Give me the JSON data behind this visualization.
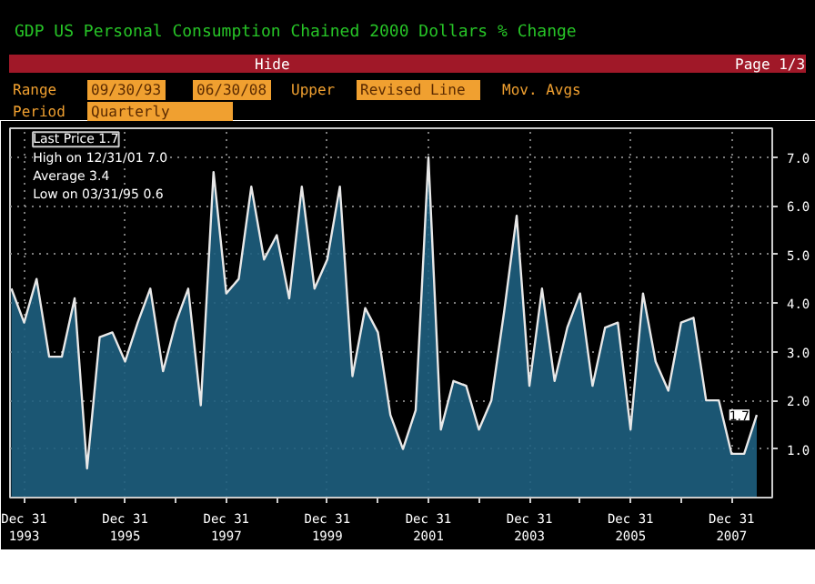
{
  "chart_data": {
    "type": "area",
    "title": "GDP US Personal Consumption Chained 2000 Dollars % Change",
    "annotations": [
      "Hide",
      "Page 1/3",
      "Range",
      "09/30/93",
      "06/30/08",
      "Upper",
      "Revised Line",
      "Mov. Avgs",
      "Period",
      "Quarterly",
      "Last Price 1.7",
      "High on 12/31/01 7.0",
      "Average 3.4",
      "Low on 03/31/95 0.6",
      {
        "text": "1.7",
        "x": "2008-06-30",
        "y": 1.7
      }
    ],
    "x": [
      "1993-09-30",
      "1993-12-31",
      "1994-03-31",
      "1994-06-30",
      "1994-09-30",
      "1994-12-31",
      "1995-03-31",
      "1995-06-30",
      "1995-09-30",
      "1995-12-31",
      "1996-03-31",
      "1996-06-30",
      "1996-09-30",
      "1996-12-31",
      "1997-03-31",
      "1997-06-30",
      "1997-09-30",
      "1997-12-31",
      "1998-03-31",
      "1998-06-30",
      "1998-09-30",
      "1998-12-31",
      "1999-03-31",
      "1999-06-30",
      "1999-09-30",
      "1999-12-31",
      "2000-03-31",
      "2000-06-30",
      "2000-09-30",
      "2000-12-31",
      "2001-03-31",
      "2001-06-30",
      "2001-09-30",
      "2001-12-31",
      "2002-03-31",
      "2002-06-30",
      "2002-09-30",
      "2002-12-31",
      "2003-03-31",
      "2003-06-30",
      "2003-09-30",
      "2003-12-31",
      "2004-03-31",
      "2004-06-30",
      "2004-09-30",
      "2004-12-31",
      "2005-03-31",
      "2005-06-30",
      "2005-09-30",
      "2005-12-31",
      "2006-03-31",
      "2006-06-30",
      "2006-09-30",
      "2006-12-31",
      "2007-03-31",
      "2007-06-30",
      "2007-09-30",
      "2007-12-31",
      "2008-03-31",
      "2008-06-30"
    ],
    "series": [
      {
        "color": "#1e5f80",
        "values": [
          4.3,
          3.6,
          4.5,
          2.9,
          2.9,
          4.1,
          0.6,
          3.3,
          3.4,
          2.8,
          3.6,
          4.3,
          2.6,
          3.6,
          4.3,
          1.9,
          6.7,
          4.2,
          4.5,
          6.4,
          4.9,
          5.4,
          4.1,
          6.4,
          4.3,
          4.9,
          6.4,
          2.5,
          3.9,
          3.4,
          1.7,
          1.0,
          1.8,
          7.0,
          1.4,
          2.4,
          2.3,
          1.4,
          2.0,
          3.8,
          5.8,
          2.3,
          4.3,
          2.4,
          3.5,
          4.2,
          2.3,
          3.5,
          3.6,
          1.4,
          4.2,
          2.8,
          2.2,
          3.6,
          3.7,
          2.0,
          2.0,
          0.9,
          0.9,
          1.7
        ]
      }
    ],
    "xlim": [
      "1993-09-20",
      "2008-10-20"
    ],
    "xticks": [
      {
        "value": "1993-12-31",
        "label": "Dec 31\n1993"
      },
      {
        "value": "1994-12-31",
        "label": null
      },
      {
        "value": "1995-12-31",
        "label": "Dec 31\n1995"
      },
      {
        "value": "1996-12-31",
        "label": null
      },
      {
        "value": "1997-12-31",
        "label": "Dec 31\n1997"
      },
      {
        "value": "1998-12-31",
        "label": null
      },
      {
        "value": "1999-12-31",
        "label": "Dec 31\n1999"
      },
      {
        "value": "2000-12-31",
        "label": null
      },
      {
        "value": "2001-12-31",
        "label": "Dec 31\n2001"
      },
      {
        "value": "2002-12-31",
        "label": null
      },
      {
        "value": "2003-12-31",
        "label": "Dec 31\n2003"
      },
      {
        "value": "2004-12-31",
        "label": null
      },
      {
        "value": "2005-12-31",
        "label": "Dec 31\n2005"
      },
      {
        "value": "2006-12-31",
        "label": null
      },
      {
        "value": "2007-12-31",
        "label": "Dec 31\n2007"
      }
    ],
    "ylim": [
      0,
      7.6
    ],
    "yticks": [
      {
        "value": 1,
        "label": "1.0"
      },
      {
        "value": 2,
        "label": "2.0"
      },
      {
        "value": 3,
        "label": "3.0"
      },
      {
        "value": 4,
        "label": "4.0"
      },
      {
        "value": 5,
        "label": "5.0"
      },
      {
        "value": 6,
        "label": "6.0"
      },
      {
        "value": 7,
        "label": "7.0"
      }
    ],
    "grid": true
  }
}
